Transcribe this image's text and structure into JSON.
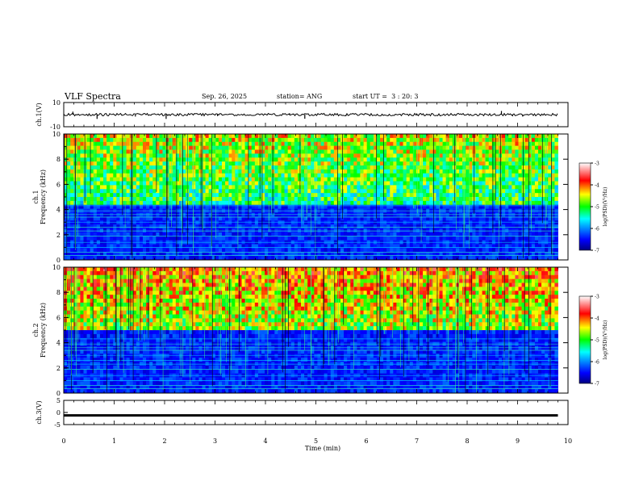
{
  "header": {
    "title": "VLF Spectra",
    "date": "Sep. 26, 2025",
    "station": "station= ANG",
    "start_ut": "start UT =  3 : 20: 3"
  },
  "chart_data": [
    {
      "type": "line",
      "panel": "ch1-waveform",
      "ylabel": "ch.1(V)",
      "ylim": [
        -10,
        10
      ],
      "yticks": [
        "10",
        "-10"
      ],
      "xlim": [
        0,
        10
      ],
      "data_end_min": 9.8,
      "baseline": 0,
      "spikes": [
        {
          "t": 0.18,
          "v": 2.5
        },
        {
          "t": 0.66,
          "v": -3.5
        },
        {
          "t": 1.42,
          "v": -1.6
        },
        {
          "t": 2.03,
          "v": -3.5
        },
        {
          "t": 3.05,
          "v": -1.2
        },
        {
          "t": 4.48,
          "v": 1.1
        },
        {
          "t": 4.78,
          "v": -3.4
        },
        {
          "t": 5.6,
          "v": -1.0
        },
        {
          "t": 7.0,
          "v": 1.0
        },
        {
          "t": 8.68,
          "v": 3.0
        },
        {
          "t": 8.9,
          "v": -1.4
        },
        {
          "t": 9.1,
          "v": -1.6
        }
      ]
    },
    {
      "type": "heatmap",
      "panel": "ch1-spectrogram",
      "ylabel": "Frequency (kHz)",
      "channel_label": "ch.1",
      "ylim": [
        0,
        10
      ],
      "yticks": [
        "0",
        "2",
        "4",
        "6",
        "8",
        "10"
      ],
      "xlim": [
        0,
        10
      ],
      "data_end_min": 9.8,
      "noise_floor_khz": 4.5,
      "colorbar": {
        "label": "log(PSD)(V²/Hz)",
        "range": [
          -7,
          -3
        ],
        "ticks": [
          "-3",
          "-4",
          "-5",
          "-6",
          "-7"
        ]
      }
    },
    {
      "type": "heatmap",
      "panel": "ch2-spectrogram",
      "ylabel": "Frequency (kHz)",
      "channel_label": "ch.2",
      "ylim": [
        0,
        10
      ],
      "yticks": [
        "0",
        "2",
        "4",
        "6",
        "8",
        "10"
      ],
      "xlim": [
        0,
        10
      ],
      "data_end_min": 9.8,
      "noise_floor_khz": 5.0,
      "colorbar": {
        "label": "log(PSD)(V²/Hz)",
        "range": [
          -7,
          -3
        ],
        "ticks": [
          "-3",
          "-4",
          "-5",
          "-6",
          "-7"
        ]
      }
    },
    {
      "type": "line",
      "panel": "ch3-waveform",
      "ylabel": "ch.3(V)",
      "ylim": [
        -5,
        5
      ],
      "yticks": [
        "5",
        "0",
        "-5"
      ],
      "xlim": [
        0,
        10
      ],
      "data_end_min": 9.8,
      "baseline": -1.2
    }
  ],
  "x_axis": {
    "label": "Time (min)",
    "ticks": [
      "0",
      "1",
      "2",
      "3",
      "4",
      "5",
      "6",
      "7",
      "8",
      "9",
      "10"
    ]
  }
}
